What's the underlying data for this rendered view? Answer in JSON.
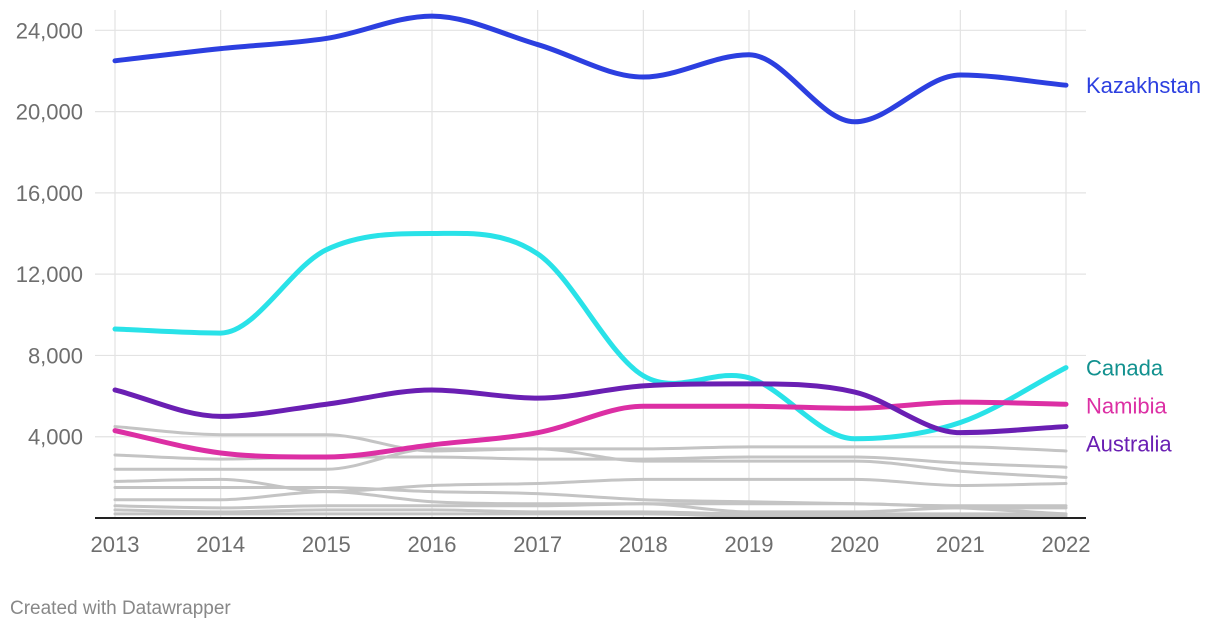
{
  "chart_data": {
    "type": "line",
    "x": [
      2013,
      2014,
      2015,
      2016,
      2017,
      2018,
      2019,
      2020,
      2021,
      2022
    ],
    "xticks": [
      "2013",
      "2014",
      "2015",
      "2016",
      "2017",
      "2018",
      "2019",
      "2020",
      "2021",
      "2022"
    ],
    "yticks": [
      "4,000",
      "8,000",
      "12,000",
      "16,000",
      "20,000",
      "24,000"
    ],
    "ytick_values": [
      4000,
      8000,
      12000,
      16000,
      20000,
      24000
    ],
    "ylim": [
      0,
      25000
    ],
    "grid": true,
    "series": [
      {
        "name": "Kazakhstan",
        "color": "#2c3fe0",
        "highlight": true,
        "values": [
          22500,
          23100,
          23600,
          24700,
          23300,
          21700,
          22800,
          19500,
          21800,
          21300
        ]
      },
      {
        "name": "Canada",
        "color": "#29e2e8",
        "label_color": "#12918f",
        "highlight": true,
        "values": [
          9300,
          9100,
          13200,
          14000,
          13000,
          7000,
          6900,
          3900,
          4700,
          7400
        ]
      },
      {
        "name": "Namibia",
        "color": "#dc2fa4",
        "highlight": true,
        "values": [
          4300,
          3200,
          3000,
          3600,
          4200,
          5500,
          5500,
          5400,
          5700,
          5600
        ]
      },
      {
        "name": "Australia",
        "color": "#6a1fb3",
        "highlight": true,
        "values": [
          6300,
          5000,
          5600,
          6300,
          5900,
          6500,
          6600,
          6200,
          4200,
          4500
        ]
      },
      {
        "name": "",
        "color": "#c4c4c4",
        "highlight": false,
        "values": [
          4500,
          4100,
          4100,
          3300,
          3400,
          3400,
          3500,
          3500,
          3500,
          3300
        ]
      },
      {
        "name": "",
        "color": "#c4c4c4",
        "highlight": false,
        "values": [
          3100,
          2900,
          3000,
          3000,
          2900,
          2900,
          3000,
          3000,
          2700,
          2500
        ]
      },
      {
        "name": "",
        "color": "#c4c4c4",
        "highlight": false,
        "values": [
          2400,
          2400,
          2400,
          3400,
          3400,
          2800,
          2800,
          2800,
          2300,
          2000
        ]
      },
      {
        "name": "",
        "color": "#c4c4c4",
        "highlight": false,
        "values": [
          1800,
          1900,
          1300,
          1600,
          1700,
          1900,
          1900,
          1900,
          1600,
          1700
        ]
      },
      {
        "name": "",
        "color": "#c4c4c4",
        "highlight": false,
        "values": [
          1500,
          1500,
          1500,
          1300,
          1200,
          900,
          800,
          700,
          600,
          600
        ]
      },
      {
        "name": "",
        "color": "#c4c4c4",
        "highlight": false,
        "values": [
          900,
          900,
          1300,
          800,
          700,
          700,
          700,
          700,
          500,
          200
        ]
      },
      {
        "name": "",
        "color": "#c4c4c4",
        "highlight": false,
        "values": [
          600,
          500,
          600,
          600,
          600,
          700,
          300,
          300,
          500,
          500
        ]
      },
      {
        "name": "",
        "color": "#c4c4c4",
        "highlight": false,
        "values": [
          400,
          300,
          400,
          400,
          300,
          300,
          200,
          200,
          200,
          200
        ]
      },
      {
        "name": "",
        "color": "#c4c4c4",
        "highlight": false,
        "values": [
          200,
          200,
          200,
          200,
          200,
          200,
          100,
          100,
          100,
          100
        ]
      }
    ]
  },
  "footer": {
    "credit": "Created with Datawrapper"
  }
}
